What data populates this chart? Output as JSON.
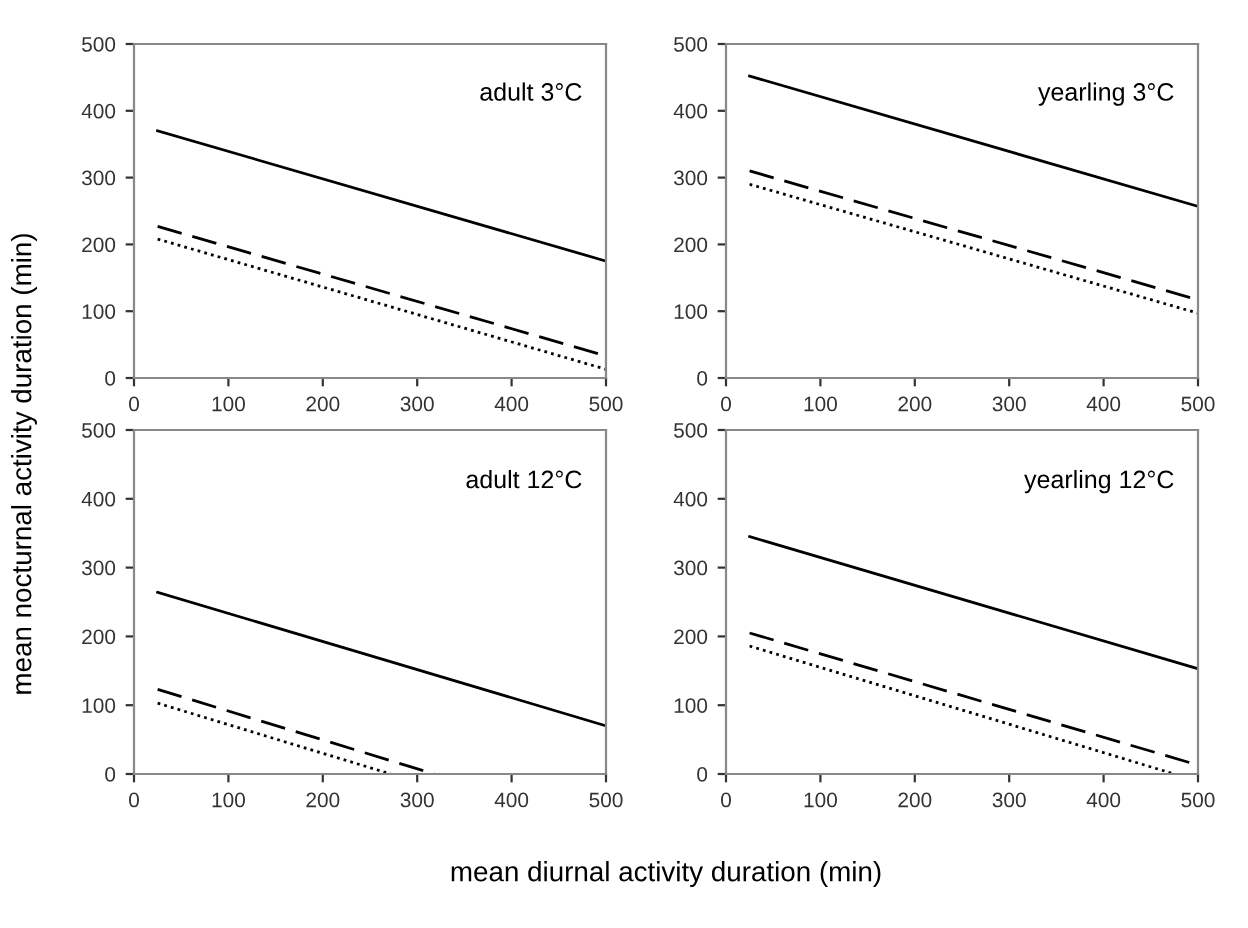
{
  "chart_data": [
    {
      "type": "line",
      "ylabel": "mean nocturnal activity duration (min)",
      "xlabel": "mean diurnal activity duration (min)",
      "annotations": [
        "adult 3°C"
      ],
      "xlim": [
        0,
        500
      ],
      "xticks": [
        0,
        100,
        200,
        300,
        400,
        500
      ],
      "ylim": [
        0,
        500
      ],
      "yticks": [
        0,
        100,
        200,
        300,
        400,
        500
      ],
      "grid": false,
      "legend": false,
      "series": [
        {
          "color": "#000000",
          "line_style": "solid",
          "x": [
            25,
            500
          ],
          "values": [
            370,
            175
          ]
        },
        {
          "color": "#000000",
          "line_style": "dashed",
          "x": [
            25,
            500
          ],
          "values": [
            227,
            33
          ]
        },
        {
          "color": "#000000",
          "line_style": "dotted",
          "x": [
            25,
            500
          ],
          "values": [
            208,
            13
          ]
        }
      ]
    },
    {
      "type": "line",
      "annotations": [
        "yearling 3°C"
      ],
      "xlim": [
        0,
        500
      ],
      "xticks": [
        0,
        100,
        200,
        300,
        400,
        500
      ],
      "ylim": [
        0,
        500
      ],
      "yticks": [
        0,
        100,
        200,
        300,
        400,
        500
      ],
      "grid": false,
      "legend": false,
      "series": [
        {
          "color": "#000000",
          "line_style": "solid",
          "x": [
            25,
            500
          ],
          "values": [
            452,
            257
          ]
        },
        {
          "color": "#000000",
          "line_style": "dashed",
          "x": [
            25,
            500
          ],
          "values": [
            310,
            117
          ]
        },
        {
          "color": "#000000",
          "line_style": "dotted",
          "x": [
            25,
            500
          ],
          "values": [
            290,
            97
          ]
        }
      ]
    },
    {
      "type": "line",
      "annotations": [
        "adult 12°C"
      ],
      "xlim": [
        0,
        500
      ],
      "xticks": [
        0,
        100,
        200,
        300,
        400,
        500
      ],
      "ylim": [
        0,
        500
      ],
      "yticks": [
        0,
        100,
        200,
        300,
        400,
        500
      ],
      "grid": false,
      "legend": false,
      "series": [
        {
          "color": "#000000",
          "line_style": "solid",
          "x": [
            25,
            500
          ],
          "values": [
            264,
            70
          ]
        },
        {
          "color": "#000000",
          "line_style": "dashed",
          "x": [
            25,
            318
          ],
          "values": [
            123,
            0
          ]
        },
        {
          "color": "#000000",
          "line_style": "dotted",
          "x": [
            25,
            272
          ],
          "values": [
            103,
            0
          ]
        }
      ]
    },
    {
      "type": "line",
      "annotations": [
        "yearling 12°C"
      ],
      "xlim": [
        0,
        500
      ],
      "xticks": [
        0,
        100,
        200,
        300,
        400,
        500
      ],
      "ylim": [
        0,
        500
      ],
      "yticks": [
        0,
        100,
        200,
        300,
        400,
        500
      ],
      "grid": false,
      "legend": false,
      "series": [
        {
          "color": "#000000",
          "line_style": "solid",
          "x": [
            25,
            500
          ],
          "values": [
            345,
            153
          ]
        },
        {
          "color": "#000000",
          "line_style": "dashed",
          "x": [
            25,
            500
          ],
          "values": [
            205,
            13
          ]
        },
        {
          "color": "#000000",
          "line_style": "dotted",
          "x": [
            25,
            475
          ],
          "values": [
            186,
            0
          ]
        }
      ]
    }
  ]
}
